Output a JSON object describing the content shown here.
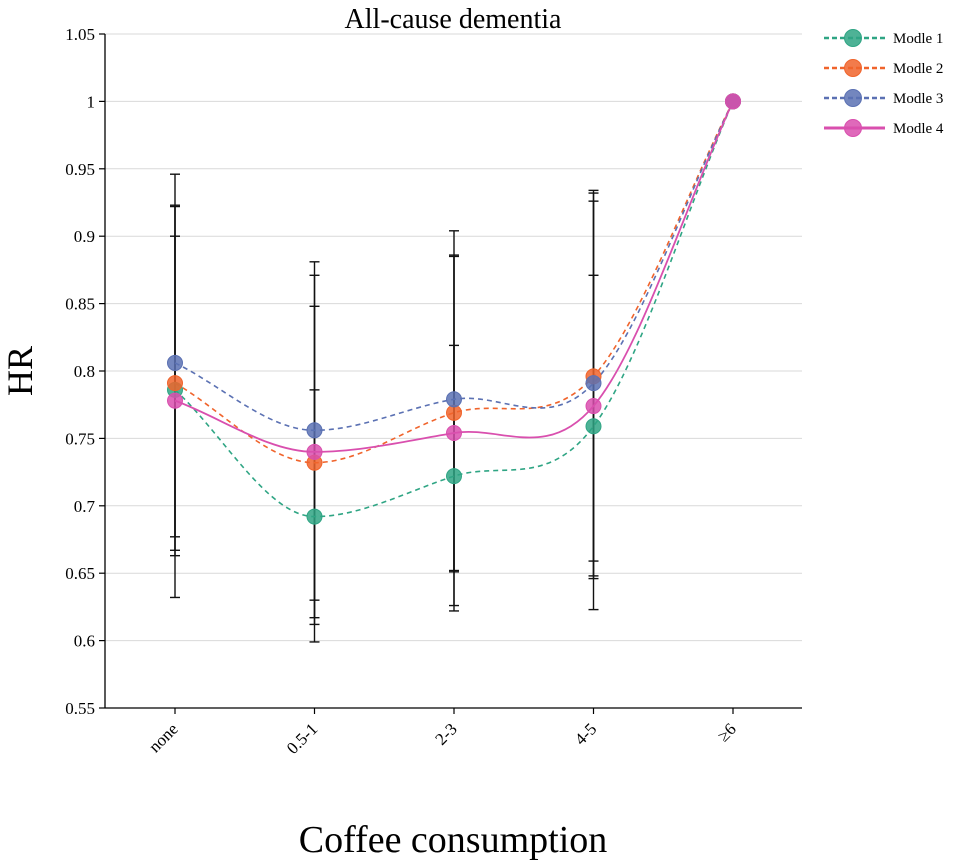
{
  "chart_data": {
    "type": "line",
    "title": "All-cause dementia",
    "xlabel": "Coffee consumption",
    "ylabel": "HR",
    "categories": [
      "none",
      "0.5-1",
      "2-3",
      "4-5",
      "≥6"
    ],
    "ylim": [
      0.55,
      1.05
    ],
    "yticks": [
      0.55,
      0.6,
      0.65,
      0.7,
      0.75,
      0.8,
      0.85,
      0.9,
      0.95,
      1,
      1.05
    ],
    "ytick_labels": [
      "0.55",
      "0.6",
      "0.65",
      "0.7",
      "0.75",
      "0.8",
      "0.85",
      "0.9",
      "0.95",
      "1",
      "1.05"
    ],
    "grid": "horizontal",
    "legend_position": "top-right",
    "series": [
      {
        "name": "Modle 1",
        "color": "#2fa584",
        "dash": "dashed",
        "values": [
          0.786,
          0.692,
          0.722,
          0.759,
          1.0
        ],
        "ci_low": [
          0.632,
          0.599,
          0.622,
          0.623,
          null
        ],
        "ci_high": [
          0.946,
          0.881,
          0.904,
          0.934,
          null
        ]
      },
      {
        "name": "Modle 2",
        "color": "#f0642c",
        "dash": "dashed",
        "values": [
          0.791,
          0.732,
          0.769,
          0.796,
          1.0
        ],
        "ci_low": [
          0.663,
          0.612,
          0.626,
          0.646,
          null
        ],
        "ci_high": [
          0.922,
          0.871,
          0.886,
          0.932,
          null
        ]
      },
      {
        "name": "Modle 3",
        "color": "#5b71b3",
        "dash": "dashed",
        "values": [
          0.806,
          0.756,
          0.779,
          0.791,
          1.0
        ],
        "ci_low": [
          0.667,
          0.617,
          0.651,
          0.648,
          null
        ],
        "ci_high": [
          0.923,
          0.848,
          0.885,
          0.926,
          null
        ]
      },
      {
        "name": "Modle 4",
        "color": "#d94fae",
        "dash": "solid",
        "values": [
          0.778,
          0.74,
          0.754,
          0.774,
          1.0
        ],
        "ci_low": [
          0.677,
          0.63,
          0.652,
          0.659,
          null
        ],
        "ci_high": [
          0.9,
          0.786,
          0.819,
          0.871,
          null
        ]
      }
    ]
  }
}
